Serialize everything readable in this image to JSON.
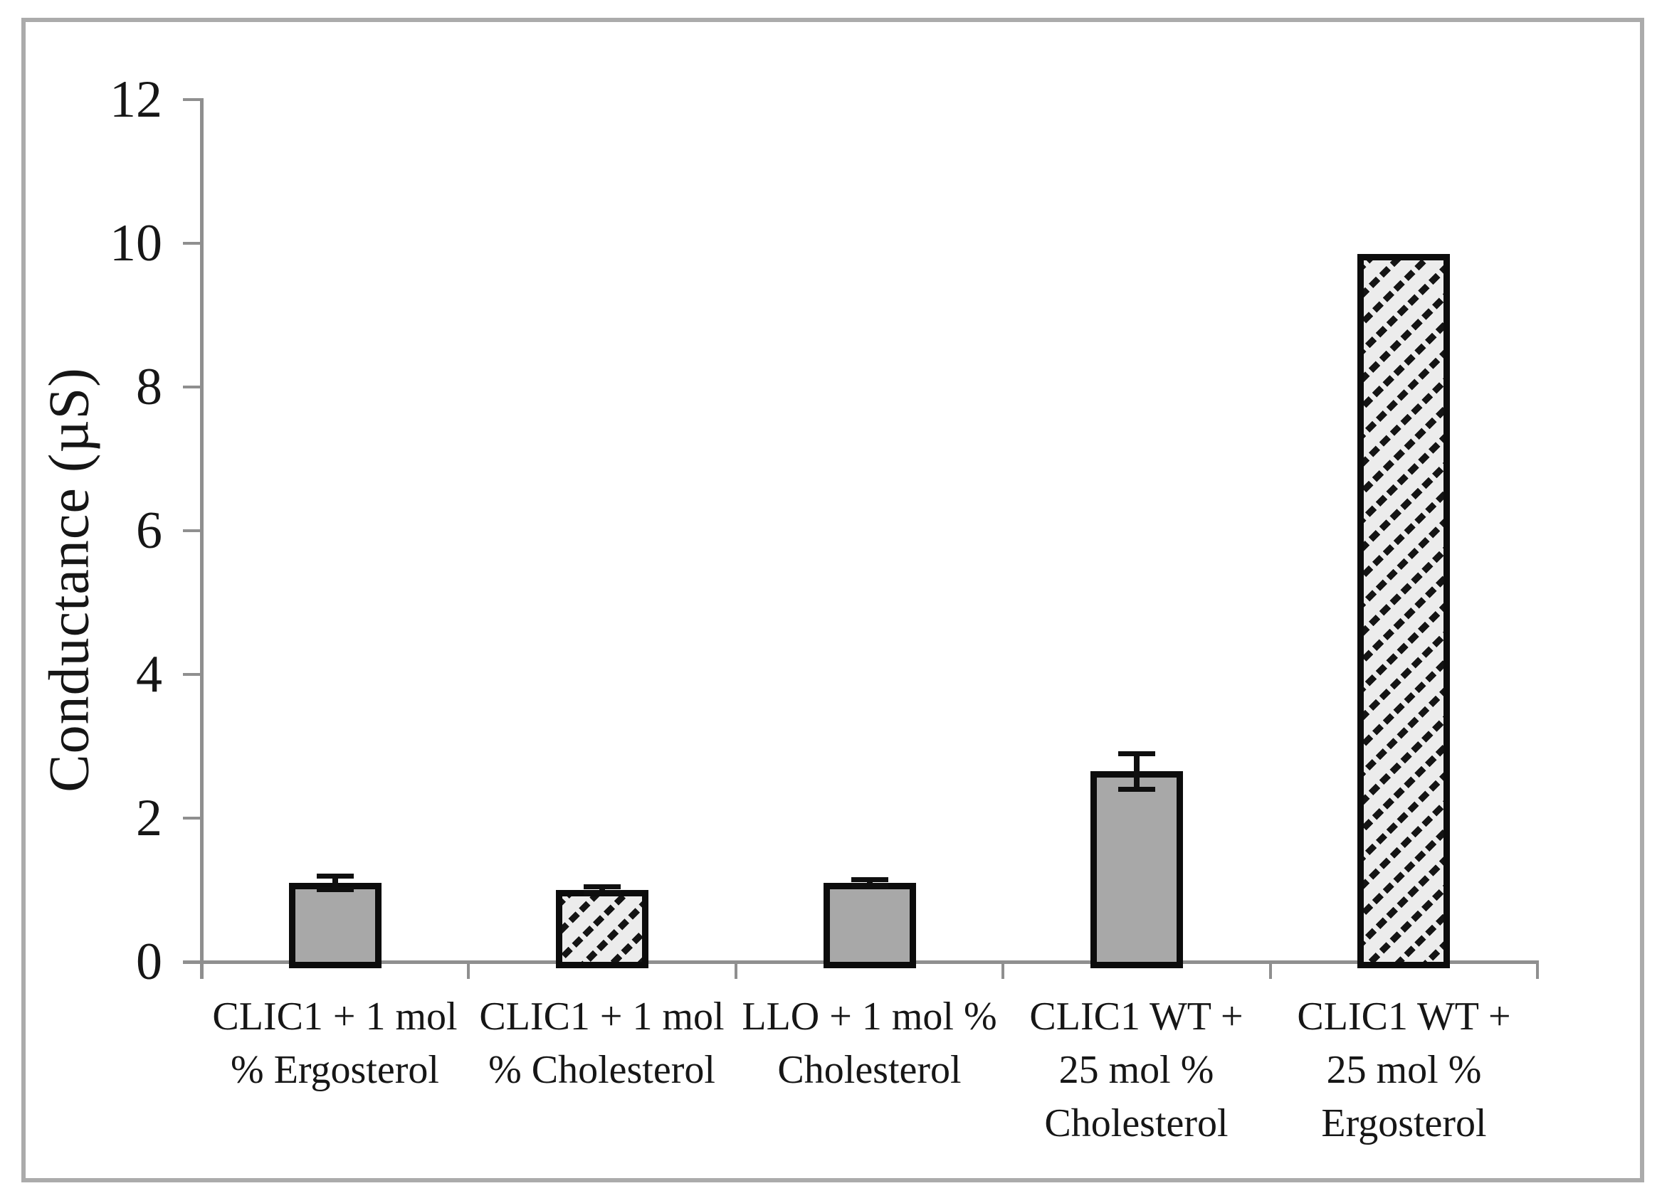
{
  "chart_data": {
    "type": "bar",
    "title": "",
    "xlabel": "",
    "ylabel": "Conductance (µS)",
    "ylim": [
      0,
      12
    ],
    "yticks": [
      0,
      2,
      4,
      6,
      8,
      10,
      12
    ],
    "grid": false,
    "legend": "none",
    "categories": [
      "CLIC1 + 1 mol\n% Ergosterol",
      "CLIC1 + 1 mol\n% Cholesterol",
      "LLO + 1 mol %\nCholesterol",
      "CLIC1 WT +\n25 mol %\nCholesterol",
      "CLIC1 WT +\n25 mol %\nErgosterol"
    ],
    "series": [
      {
        "name": "Conductance",
        "values": [
          1.1,
          1.0,
          1.1,
          2.65,
          9.85
        ],
        "errors": [
          0.1,
          0.05,
          0.05,
          0.25,
          0
        ],
        "fill_styles": [
          "solid-gray",
          "hatched-diagonal",
          "solid-gray",
          "solid-gray",
          "hatched-diagonal"
        ]
      }
    ],
    "colors": {
      "solid_bar_fill": "#a8a8a8",
      "hatch_background": "#ececec",
      "hatch_line": "#141414",
      "bar_border": "#0c0c0c",
      "axis": "#8f8f8f",
      "text": "#161616",
      "frame_border": "#ababab",
      "background": "#ffffff"
    }
  }
}
